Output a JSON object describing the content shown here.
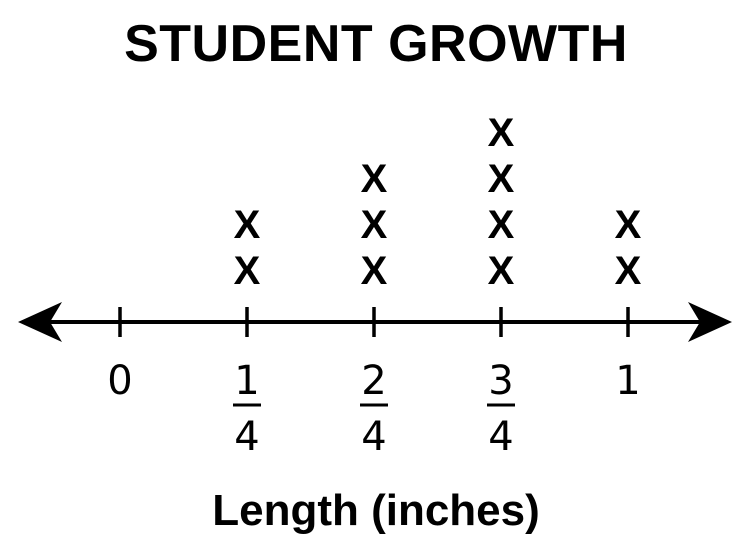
{
  "chart_data": {
    "type": "line-plot",
    "title": "STUDENT GROWTH",
    "xlabel": "Length (inches)",
    "ylabel": "",
    "marker": "X",
    "xlim": [
      0,
      1
    ],
    "ticks": [
      {
        "value": 0,
        "label": "0"
      },
      {
        "value": 0.25,
        "numerator": "1",
        "denominator": "4"
      },
      {
        "value": 0.5,
        "numerator": "2",
        "denominator": "4"
      },
      {
        "value": 0.75,
        "numerator": "3",
        "denominator": "4"
      },
      {
        "value": 1,
        "label": "1"
      }
    ],
    "points": [
      {
        "x": 0.25,
        "count": 2
      },
      {
        "x": 0.5,
        "count": 3
      },
      {
        "x": 0.75,
        "count": 4
      },
      {
        "x": 1,
        "count": 2
      }
    ],
    "axis_arrows": "both",
    "grid": false,
    "colors": {
      "ink": "#000000",
      "background": "#ffffff"
    }
  }
}
